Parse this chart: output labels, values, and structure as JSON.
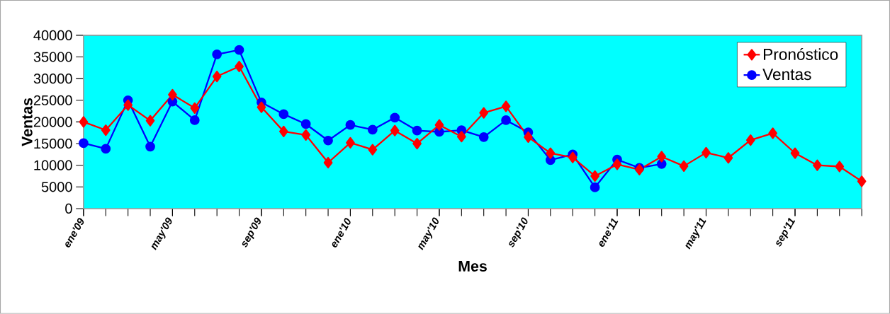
{
  "chart_data": {
    "type": "line",
    "xlabel": "Mes",
    "ylabel": "Ventas",
    "categories": [
      "ene'09",
      null,
      null,
      null,
      "may'09",
      null,
      null,
      null,
      "sep'09",
      null,
      null,
      null,
      "ene'10",
      null,
      null,
      null,
      "may'10",
      null,
      null,
      null,
      "sep'10",
      null,
      null,
      null,
      "ene'11",
      null,
      null,
      null,
      "may'11",
      null,
      null,
      null,
      "sep'11",
      null,
      null,
      null
    ],
    "series": [
      {
        "name": "Pronóstico",
        "color": "#ff0000",
        "marker": "diamond",
        "values": [
          20000,
          18100,
          23900,
          20300,
          26300,
          23200,
          30500,
          32800,
          23400,
          17800,
          17000,
          10600,
          15200,
          13600,
          18000,
          15000,
          19300,
          16600,
          22100,
          23600,
          16500,
          12800,
          11800,
          7500,
          10200,
          9000,
          12000,
          9800,
          12900,
          11700,
          15800,
          17400,
          12800,
          10000,
          9700,
          6300
        ]
      },
      {
        "name": "Ventas",
        "color": "#0000ff",
        "marker": "circle",
        "values": [
          15100,
          13800,
          25000,
          14300,
          24700,
          20400,
          35600,
          36600,
          24500,
          21800,
          19500,
          15700,
          19300,
          18200,
          21000,
          18000,
          17700,
          18100,
          16500,
          20400,
          17600,
          11200,
          12500,
          4900,
          11300,
          9400,
          10300,
          null,
          null,
          null,
          null,
          null,
          null,
          null,
          null,
          null
        ]
      }
    ],
    "ylim": [
      0,
      40000
    ],
    "yticks": [
      0,
      5000,
      10000,
      15000,
      20000,
      25000,
      30000,
      35000,
      40000
    ],
    "grid": false,
    "legend": "top right",
    "line_style": "solid"
  }
}
